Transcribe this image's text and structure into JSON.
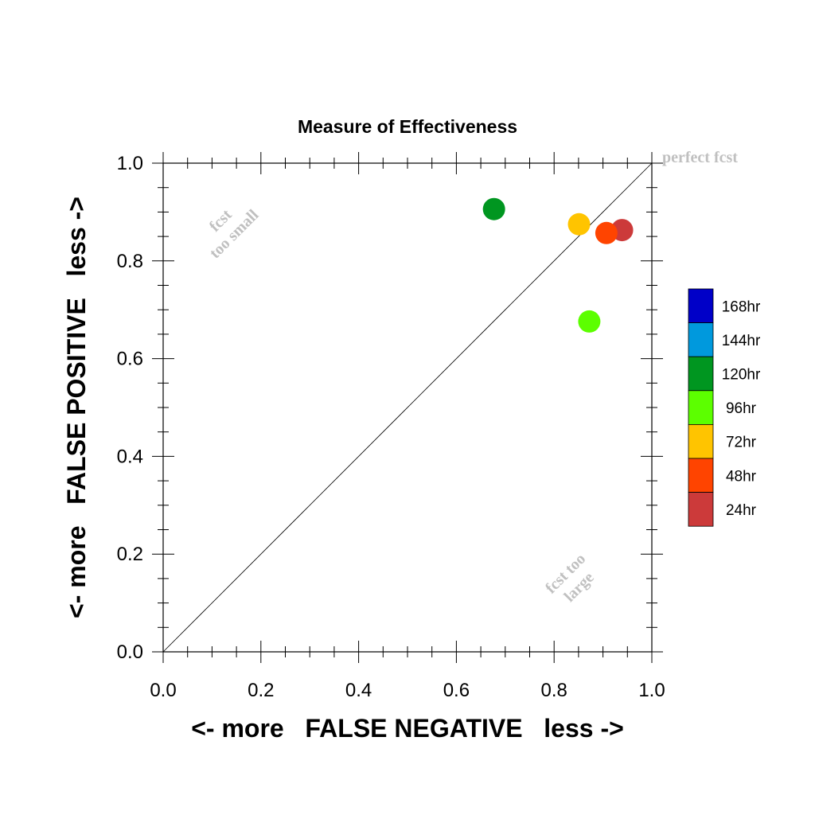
{
  "chart_data": {
    "type": "scatter",
    "title": "Measure of Effectiveness",
    "xlabel": "<- more   FALSE NEGATIVE   less ->",
    "ylabel": "<- more   FALSE POSITIVE   less ->",
    "xlim": [
      0.0,
      1.0
    ],
    "ylim": [
      0.0,
      1.0
    ],
    "xticks": [
      "0.0",
      "0.2",
      "0.4",
      "0.6",
      "0.8",
      "1.0"
    ],
    "yticks": [
      "0.0",
      "0.2",
      "0.4",
      "0.6",
      "0.8",
      "1.0"
    ],
    "grid": false,
    "annotations": {
      "perfect": "perfect fcst",
      "too_small": [
        "fcst",
        "too small"
      ],
      "too_large": [
        "fcst too",
        "large"
      ]
    },
    "legend": {
      "placement": "right",
      "entries": [
        {
          "label": "168hr",
          "color": "#0000c8"
        },
        {
          "label": "144hr",
          "color": "#0099dd"
        },
        {
          "label": "120hr",
          "color": "#009620"
        },
        {
          "label": "96hr",
          "color": "#5cff00"
        },
        {
          "label": "72hr",
          "color": "#ffc400"
        },
        {
          "label": "48hr",
          "color": "#ff4400"
        },
        {
          "label": "24hr",
          "color": "#cc3a3a"
        }
      ]
    },
    "series": [
      {
        "name": "120hr",
        "x": [
          0.677
        ],
        "y": [
          0.906
        ],
        "color": "#009620"
      },
      {
        "name": "96hr",
        "x": [
          0.872
        ],
        "y": [
          0.676
        ],
        "color": "#5cff00"
      },
      {
        "name": "72hr",
        "x": [
          0.851
        ],
        "y": [
          0.875
        ],
        "color": "#ffc400"
      },
      {
        "name": "24hr",
        "x": [
          0.939
        ],
        "y": [
          0.863
        ],
        "color": "#cc3a3a"
      },
      {
        "name": "48hr",
        "x": [
          0.907
        ],
        "y": [
          0.857
        ],
        "color": "#ff4400"
      }
    ]
  }
}
